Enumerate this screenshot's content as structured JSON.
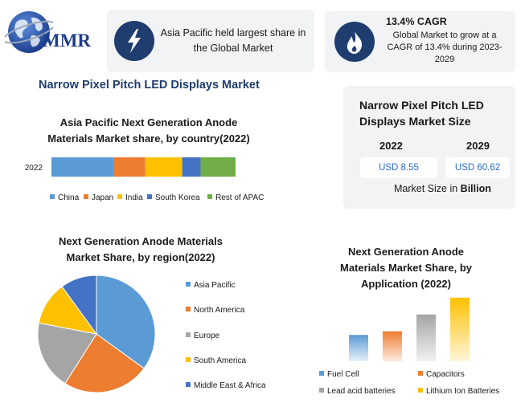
{
  "logo": {
    "text": "MMR"
  },
  "info_cards": {
    "share": {
      "text": "Asia Pacific held largest share in the Global Market",
      "line1": "Asia Pacific held largest share in",
      "line2": "the Global Market"
    },
    "cagr": {
      "title": "13.4% CAGR",
      "line1": "Global Market to grow at a",
      "line2": "CAGR of 13.4% during 2023-",
      "line3": "2029"
    }
  },
  "main_title": "Narrow Pixel Pitch LED Displays Market",
  "market_size": {
    "title_line1": "Narrow Pixel Pitch LED",
    "title_line2": "Displays Market Size",
    "year_1": "2022",
    "year_2": "2029",
    "value_1": "USD 8.55",
    "value_2": "USD 60.62",
    "unit_prefix": "Market Size in ",
    "unit_bold": "Billion"
  },
  "colors": {
    "blue": "#5b9bd5",
    "orange": "#ed7d31",
    "gold": "#ffc000",
    "darkblue": "#4472c4",
    "green": "#70ad47",
    "grey": "#a5a5a5",
    "navy": "#1f3d6e"
  },
  "chart_data": [
    {
      "type": "bar",
      "orientation": "horizontal-stacked",
      "title": "Asia Pacific Next Generation Anode Materials Market share, by country(2022)",
      "title_line1": "Asia Pacific Next Generation Anode",
      "title_line2": "Materials Market share, by country(2022)",
      "categories": [
        "2022"
      ],
      "series": [
        {
          "name": "China",
          "values": [
            34
          ]
        },
        {
          "name": "Japan",
          "values": [
            17
          ]
        },
        {
          "name": "India",
          "values": [
            20
          ]
        },
        {
          "name": "South Korea",
          "values": [
            10
          ]
        },
        {
          "name": "Rest of APAC",
          "values": [
            19
          ]
        }
      ],
      "legend": "bottom"
    },
    {
      "type": "pie",
      "title": "Next Generation Anode Materials Market Share, by region(2022)",
      "title_line1": "Next Generation Anode Materials",
      "title_line2": "Market Share, by region(2022)",
      "slices": [
        {
          "name": "Asia Pacific",
          "value": 35
        },
        {
          "name": "North America",
          "value": 24
        },
        {
          "name": "Europe",
          "value": 19
        },
        {
          "name": "South America",
          "value": 12
        },
        {
          "name": "Middle East & Africa",
          "value": 10
        }
      ],
      "legend": "right"
    },
    {
      "type": "bar",
      "title": "Next Generation Anode Materials Market Share, by Application (2022)",
      "title_line1": "Next Generation Anode",
      "title_line2": "Materials Market Share, by",
      "title_line3": "Application (2022)",
      "categories": [
        "Fuel Cell",
        "Capacitors",
        "Lead acid batteries",
        "Lithium Ion Batteries"
      ],
      "values": [
        36,
        41,
        64,
        87
      ],
      "ylim": [
        0,
        100
      ],
      "legend": "bottom"
    }
  ]
}
